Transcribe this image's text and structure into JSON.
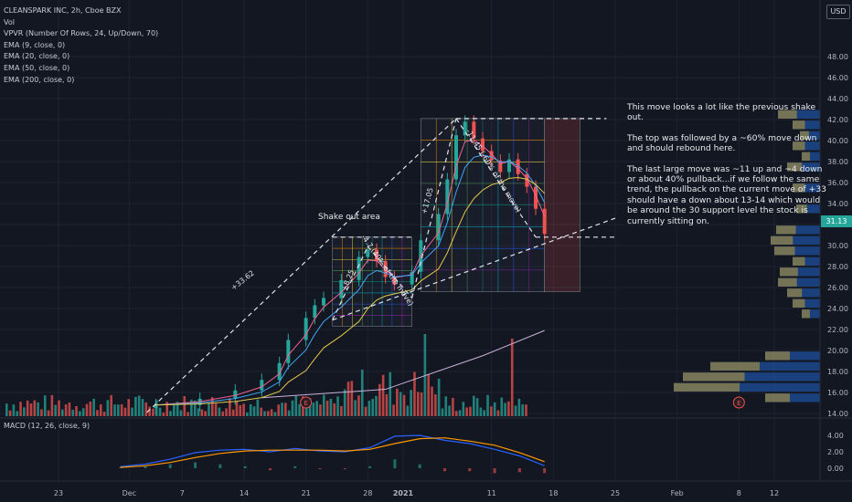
{
  "legend": {
    "symbol": "CLEANSPARK INC, 2h, Cboe BZX",
    "lines": [
      "Vol",
      "VPVR (Number Of Rows, 24, Up/Down, 70)",
      "EMA (9, close, 0)",
      "EMA (20, close, 0)",
      "EMA (50, close, 0)",
      "EMA (200, close, 0)"
    ]
  },
  "macd_label": "MACD (12, 26, close, 9)",
  "currency": "USD",
  "last_price": "31.13",
  "shake_label": "Shake out area",
  "note": {
    "p1": "This move looks a lot like the previous shake out.",
    "p2": "The top was followed by a ~60% move down and should rebound here.",
    "p3": "The last large move was ~11 up and ~4 down or about 40% pullback...if we follow the same trend, the pullback on the current move of +33 should have a down about 13-14 which would be around the 30 support level the stock is currently sitting on."
  },
  "colors": {
    "up": "#26a69a",
    "down": "#ef5350",
    "bg": "#131722",
    "grid": "#1f2330",
    "text": "#b2b5be"
  },
  "chart_data": [
    {
      "type": "candlestick",
      "title": "CLEANSPARK INC, 2h, Cboe BZX",
      "ylim": [
        14,
        50
      ],
      "y_ticks": [
        "14.00",
        "16.00",
        "18.00",
        "20.00",
        "22.00",
        "24.00",
        "26.00",
        "28.00",
        "30.00",
        "32.00",
        "34.00",
        "36.00",
        "38.00",
        "40.00",
        "42.00",
        "44.00",
        "46.00",
        "48.00"
      ],
      "x_ticks": [
        "23",
        "Dec",
        "7",
        "14",
        "21",
        "28",
        "2021",
        "11",
        "18",
        "25",
        "Feb",
        "8",
        "12"
      ],
      "x_tick_dates": [
        "2020-11-23",
        "2020-12-01",
        "2020-12-07",
        "2020-12-14",
        "2020-12-21",
        "2020-12-28",
        "2021-01-01",
        "2021-01-11",
        "2021-01-18",
        "2021-01-25",
        "2021-02-01",
        "2021-02-08",
        "2021-02-12"
      ],
      "last_price": 31.13,
      "series_close": [
        [
          "2020-12-04",
          14.8
        ],
        [
          "2020-12-09",
          15.4
        ],
        [
          "2020-12-13",
          16.2
        ],
        [
          "2020-12-16",
          17.2
        ],
        [
          "2020-12-18",
          18.8
        ],
        [
          "2020-12-19",
          21.0
        ],
        [
          "2020-12-21",
          23.1
        ],
        [
          "2020-12-22",
          24.3
        ],
        [
          "2020-12-23",
          25.0
        ],
        [
          "2020-12-25",
          26.7
        ],
        [
          "2020-12-27",
          28.9
        ],
        [
          "2020-12-28",
          29.6
        ],
        [
          "2020-12-29",
          28.5
        ],
        [
          "2020-12-30",
          27.0
        ],
        [
          "2020-12-31",
          26.3
        ],
        [
          "2021-01-02",
          27.5
        ],
        [
          "2021-01-03",
          30.5
        ],
        [
          "2021-01-05",
          33.0
        ],
        [
          "2021-01-06",
          36.3
        ],
        [
          "2021-01-07",
          40.5
        ],
        [
          "2021-01-08",
          41.8
        ],
        [
          "2021-01-09",
          40.2
        ],
        [
          "2021-01-10",
          39.0
        ],
        [
          "2021-01-11",
          38.1
        ],
        [
          "2021-01-12",
          37.0
        ],
        [
          "2021-01-13",
          38.2
        ],
        [
          "2021-01-14",
          36.8
        ],
        [
          "2021-01-15",
          35.6
        ],
        [
          "2021-01-16",
          33.5
        ],
        [
          "2021-01-17",
          31.1
        ]
      ],
      "ema_200": [
        [
          "2020-12-16",
          15.5
        ],
        [
          "2020-12-30",
          16.3
        ],
        [
          "2021-01-10",
          19.5
        ],
        [
          "2021-01-17",
          21.9
        ]
      ],
      "annotations": [
        "+33.62",
        "+8.25",
        "-11.45 (-60% of the move)",
        "+17.05",
        "-4.7 (40% of the move)"
      ],
      "volume_profile_note": "VPVR right-side histogram"
    },
    {
      "type": "line",
      "title": "MACD (12, 26, close, 9)",
      "ylim": [
        -1,
        5
      ],
      "y_ticks": [
        "0.00",
        "2.00",
        "4.00"
      ],
      "series": [
        {
          "name": "MACD",
          "values": [
            0.2,
            0.5,
            1.1,
            1.9,
            2.2,
            2.3,
            2.0,
            2.4,
            2.1,
            2.0,
            2.5,
            3.9,
            4.0,
            3.4,
            3.0,
            2.3,
            1.5,
            0.3
          ]
        },
        {
          "name": "Signal",
          "values": [
            0.1,
            0.3,
            0.7,
            1.3,
            1.8,
            2.1,
            2.2,
            2.2,
            2.2,
            2.1,
            2.3,
            3.0,
            3.6,
            3.7,
            3.3,
            2.8,
            1.9,
            0.8
          ]
        }
      ]
    }
  ]
}
